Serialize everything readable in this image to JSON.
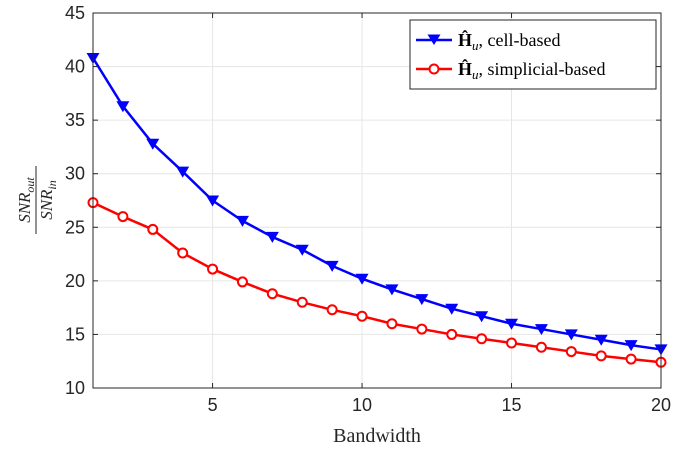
{
  "chart_data": {
    "type": "line",
    "title": "",
    "xlabel": "Bandwidth",
    "ylabel": {
      "numerator": "SNR",
      "numerator_sub": "out",
      "denominator": "SNR",
      "denominator_sub": "in"
    },
    "xlim": [
      1,
      20
    ],
    "ylim": [
      10,
      45
    ],
    "xticks": [
      5,
      10,
      15,
      20
    ],
    "yticks": [
      10,
      15,
      20,
      25,
      30,
      35,
      40,
      45
    ],
    "grid": true,
    "legend_position": "top-right",
    "x": [
      1,
      2,
      3,
      4,
      5,
      6,
      7,
      8,
      9,
      10,
      11,
      12,
      13,
      14,
      15,
      16,
      17,
      18,
      19,
      20
    ],
    "series": [
      {
        "name": "Ĥ",
        "name_sub": "u",
        "name_suffix": ", cell-based",
        "color": "#0000ff",
        "marker": "triangle-down",
        "values": [
          40.8,
          36.3,
          32.8,
          30.2,
          27.5,
          25.6,
          24.1,
          22.9,
          21.4,
          20.2,
          19.2,
          18.3,
          17.4,
          16.7,
          16.0,
          15.5,
          15.0,
          14.5,
          14.0,
          13.6
        ]
      },
      {
        "name": "Ĥ",
        "name_sub": "u",
        "name_suffix": ", simplicial-based",
        "color": "#ff0000",
        "marker": "circle",
        "values": [
          27.3,
          26.0,
          24.8,
          22.6,
          21.1,
          19.9,
          18.8,
          18.0,
          17.3,
          16.7,
          16.0,
          15.5,
          15.0,
          14.6,
          14.2,
          13.8,
          13.4,
          13.0,
          12.7,
          12.4
        ]
      }
    ]
  }
}
